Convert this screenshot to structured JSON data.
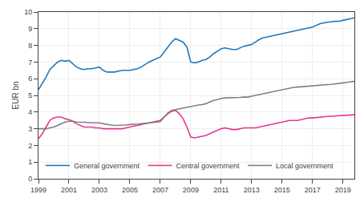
{
  "chart_data": {
    "type": "line",
    "ylabel": "EUR bn",
    "x": [
      1999.0,
      1999.25,
      1999.5,
      1999.75,
      2000.0,
      2000.25,
      2000.5,
      2000.75,
      2001.0,
      2001.25,
      2001.5,
      2001.75,
      2002.0,
      2002.25,
      2002.5,
      2002.75,
      2003.0,
      2003.25,
      2003.5,
      2003.75,
      2004.0,
      2004.25,
      2004.5,
      2004.75,
      2005.0,
      2005.25,
      2005.5,
      2005.75,
      2006.0,
      2006.25,
      2006.5,
      2006.75,
      2007.0,
      2007.25,
      2007.5,
      2007.75,
      2008.0,
      2008.25,
      2008.5,
      2008.75,
      2009.0,
      2009.25,
      2009.5,
      2009.75,
      2010.0,
      2010.25,
      2010.5,
      2010.75,
      2011.0,
      2011.25,
      2011.5,
      2011.75,
      2012.0,
      2012.25,
      2012.5,
      2012.75,
      2013.0,
      2013.25,
      2013.5,
      2013.75,
      2014.0,
      2014.25,
      2014.5,
      2014.75,
      2015.0,
      2015.25,
      2015.5,
      2015.75,
      2016.0,
      2016.25,
      2016.5,
      2016.75,
      2017.0,
      2017.25,
      2017.5,
      2017.75,
      2018.0,
      2018.25,
      2018.5,
      2018.75,
      2019.0,
      2019.25,
      2019.5,
      2019.75
    ],
    "series": [
      {
        "name": "General government",
        "color": "#1a7abf",
        "values": [
          5.35,
          5.7,
          6.1,
          6.55,
          6.8,
          7.0,
          7.1,
          7.05,
          7.1,
          6.9,
          6.7,
          6.6,
          6.55,
          6.6,
          6.6,
          6.65,
          6.7,
          6.5,
          6.4,
          6.4,
          6.4,
          6.45,
          6.5,
          6.5,
          6.5,
          6.55,
          6.6,
          6.7,
          6.85,
          7.0,
          7.1,
          7.2,
          7.3,
          7.6,
          7.9,
          8.2,
          8.4,
          8.3,
          8.2,
          7.9,
          7.0,
          6.95,
          7.0,
          7.1,
          7.15,
          7.3,
          7.5,
          7.65,
          7.8,
          7.85,
          7.8,
          7.75,
          7.75,
          7.85,
          7.95,
          8.0,
          8.05,
          8.2,
          8.35,
          8.45,
          8.5,
          8.55,
          8.6,
          8.65,
          8.7,
          8.75,
          8.8,
          8.85,
          8.9,
          8.95,
          9.0,
          9.05,
          9.1,
          9.2,
          9.3,
          9.35,
          9.4,
          9.42,
          9.44,
          9.45,
          9.5,
          9.55,
          9.6,
          9.65
        ]
      },
      {
        "name": "Central government",
        "color": "#e8368f",
        "values": [
          2.4,
          2.7,
          3.1,
          3.5,
          3.65,
          3.7,
          3.7,
          3.6,
          3.55,
          3.45,
          3.3,
          3.2,
          3.1,
          3.1,
          3.1,
          3.05,
          3.05,
          3.0,
          3.0,
          3.0,
          3.0,
          3.0,
          3.0,
          3.05,
          3.1,
          3.15,
          3.2,
          3.25,
          3.3,
          3.35,
          3.4,
          3.45,
          3.5,
          3.7,
          3.9,
          4.05,
          4.1,
          3.9,
          3.6,
          3.1,
          2.5,
          2.45,
          2.5,
          2.55,
          2.6,
          2.7,
          2.8,
          2.9,
          3.0,
          3.05,
          3.0,
          2.95,
          2.95,
          3.0,
          3.05,
          3.05,
          3.05,
          3.05,
          3.1,
          3.15,
          3.2,
          3.25,
          3.3,
          3.35,
          3.4,
          3.45,
          3.5,
          3.5,
          3.5,
          3.55,
          3.6,
          3.65,
          3.65,
          3.68,
          3.7,
          3.72,
          3.74,
          3.75,
          3.76,
          3.77,
          3.78,
          3.8,
          3.82,
          3.84
        ]
      },
      {
        "name": "Local government",
        "color": "#808080",
        "values": [
          3.0,
          3.0,
          3.0,
          3.05,
          3.1,
          3.2,
          3.3,
          3.4,
          3.45,
          3.45,
          3.4,
          3.4,
          3.4,
          3.38,
          3.35,
          3.35,
          3.35,
          3.3,
          3.25,
          3.22,
          3.2,
          3.2,
          3.2,
          3.22,
          3.25,
          3.25,
          3.28,
          3.3,
          3.32,
          3.35,
          3.38,
          3.4,
          3.42,
          3.7,
          3.95,
          4.1,
          4.15,
          4.2,
          4.25,
          4.3,
          4.35,
          4.4,
          4.42,
          4.45,
          4.5,
          4.6,
          4.7,
          4.75,
          4.82,
          4.85,
          4.85,
          4.85,
          4.85,
          4.88,
          4.9,
          4.9,
          4.95,
          5.0,
          5.05,
          5.1,
          5.15,
          5.2,
          5.25,
          5.3,
          5.35,
          5.4,
          5.45,
          5.48,
          5.5,
          5.52,
          5.55,
          5.58,
          5.6,
          5.62,
          5.63,
          5.64,
          5.65,
          5.66,
          5.68,
          5.7,
          5.75,
          5.78,
          5.8,
          5.85
        ]
      }
    ],
    "xlim": [
      1999,
      2019.75
    ],
    "ylim": [
      0,
      10
    ],
    "xticks": [
      1999,
      2001,
      2003,
      2005,
      2007,
      2009,
      2011,
      2013,
      2015,
      2017,
      2019
    ],
    "yticks": [
      0,
      1,
      2,
      3,
      4,
      5,
      6,
      7,
      8,
      9,
      10
    ],
    "grid": true,
    "legend": "lower left"
  }
}
